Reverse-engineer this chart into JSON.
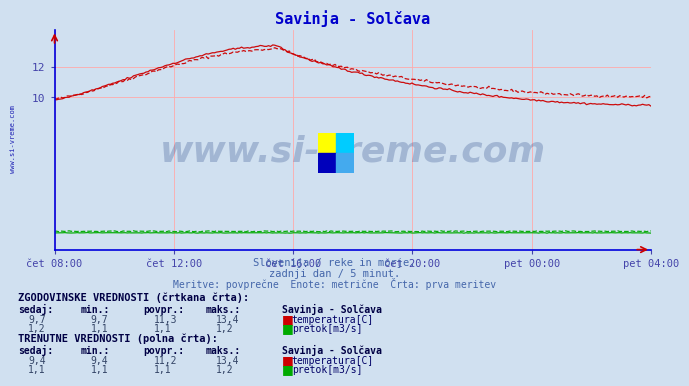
{
  "title": "Savinja - Solčava",
  "title_color": "#0000cc",
  "bg_color": "#d0e0f0",
  "plot_bg_color": "#d0e0f0",
  "grid_color_v": "#ffaaaa",
  "grid_color_h": "#ffaaaa",
  "x_labels": [
    "čet 08:00",
    "čet 12:00",
    "čet 16:00",
    "čet 20:00",
    "pet 00:00",
    "pet 04:00"
  ],
  "subtitle1": "Slovenija / reke in morje.",
  "subtitle2": "zadnji dan / 5 minut.",
  "subtitle3": "Meritve: povprečne  Enote: metrične  Črta: prva meritev",
  "subtitle_color": "#4466aa",
  "watermark": "www.si-vreme.com",
  "watermark_color": "#1a3a7e",
  "watermark_alpha": 0.25,
  "table_header1": "ZGODOVINSKE VREDNOSTI (črtkana črta):",
  "table_col_headers": [
    "sedaj:",
    "min.:",
    "povpr.:",
    "maks.:",
    "Savinja - Solčava"
  ],
  "hist_temp": [
    9.7,
    9.7,
    11.3,
    13.4
  ],
  "hist_pretok": [
    1.2,
    1.1,
    1.1,
    1.2
  ],
  "table_header2": "TRENUTNE VREDNOSTI (polna črta):",
  "curr_temp": [
    9.4,
    9.4,
    11.2,
    13.4
  ],
  "curr_pretok": [
    1.1,
    1.1,
    1.1,
    1.2
  ],
  "temp_color": "#cc0000",
  "pretok_color": "#00aa00",
  "n_points": 288,
  "ymin": 0,
  "ymax": 14.4,
  "yticks": [
    10,
    12
  ],
  "axis_color": "#0000dd",
  "tick_color": "#4444aa",
  "sidebar_color": "#0000aa"
}
